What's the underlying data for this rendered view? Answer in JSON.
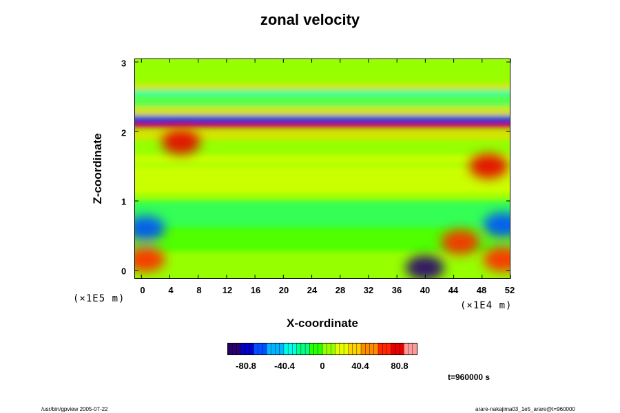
{
  "chart_data": {
    "type": "heatmap",
    "title": "zonal velocity",
    "xlabel": "X-coordinate",
    "ylabel": "Z-coordinate",
    "x_scale_label": "(×1E4 m)",
    "y_scale_label": "(×1E5 m)",
    "x_ticks": [
      "0",
      "4",
      "8",
      "12",
      "16",
      "20",
      "24",
      "28",
      "32",
      "36",
      "40",
      "44",
      "48",
      "52"
    ],
    "y_ticks": [
      "0",
      "1",
      "2",
      "3"
    ],
    "xlim": [
      -1,
      52
    ],
    "ylim": [
      -0.12,
      3.05
    ],
    "colorbar": {
      "ticks": [
        "-80.8",
        "-40.4",
        "0",
        "40.4",
        "80.8"
      ],
      "range": [
        -101,
        101
      ],
      "colors": [
        "#2a006e",
        "#0000c8",
        "#0050ff",
        "#00b4ff",
        "#00ffe6",
        "#00ff82",
        "#28ff00",
        "#96ff00",
        "#e6ff00",
        "#ffd200",
        "#ff8c00",
        "#ff2800",
        "#e60000",
        "#ff9a9a"
      ]
    },
    "bands": [
      {
        "z": 2.9,
        "value": 8
      },
      {
        "z": 2.7,
        "value": 5
      },
      {
        "z": 2.63,
        "value": 40
      },
      {
        "z": 2.55,
        "value": -30
      },
      {
        "z": 2.4,
        "value": -25
      },
      {
        "z": 2.3,
        "value": 30
      },
      {
        "z": 2.2,
        "value": -60
      },
      {
        "z": 2.15,
        "value": -85
      },
      {
        "z": 2.08,
        "value": 75
      },
      {
        "z": 1.95,
        "value": 40
      },
      {
        "z": 1.6,
        "value": 25
      },
      {
        "z": 1.3,
        "value": 15
      },
      {
        "z": 0.8,
        "value": -20
      },
      {
        "z": 0.45,
        "value": -10
      },
      {
        "z": 0.05,
        "value": 10
      }
    ],
    "features": [
      {
        "x": 5.5,
        "z": 1.85,
        "value": 85
      },
      {
        "x": 49,
        "z": 1.5,
        "value": 75
      },
      {
        "x": 0.5,
        "z": 0.6,
        "value": -60
      },
      {
        "x": 51,
        "z": 0.65,
        "value": -60
      },
      {
        "x": 40,
        "z": 0.03,
        "value": -90
      },
      {
        "x": 45,
        "z": 0.4,
        "value": 70
      },
      {
        "x": 0.5,
        "z": 0.15,
        "value": 70
      },
      {
        "x": 51,
        "z": 0.15,
        "value": 70
      }
    ]
  },
  "time_label": "t=960000 s",
  "footer_left": "/usr/bin/gpview 2005-07-22",
  "footer_right": "arare-nakajima",
  "footer_right_small": "03_1e5_arare@t=960000"
}
